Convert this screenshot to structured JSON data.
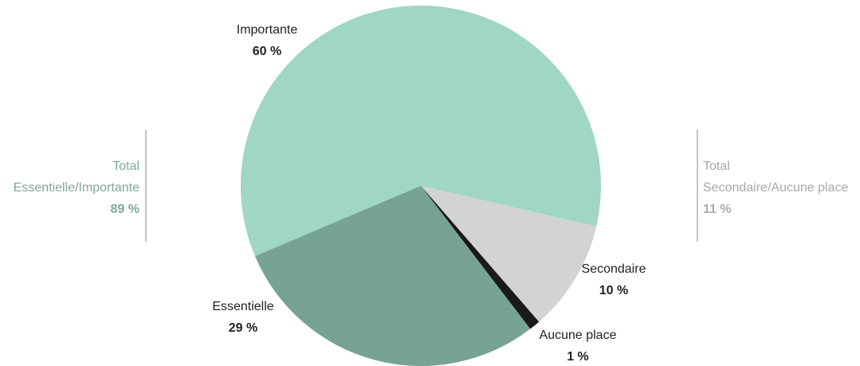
{
  "chart_data": {
    "type": "pie",
    "categories": [
      "Importante",
      "Secondaire",
      "Aucune place",
      "Essentielle"
    ],
    "values": [
      60,
      10,
      1,
      29
    ],
    "value_labels": [
      "60 %",
      "10 %",
      "1 %",
      "29 %"
    ],
    "colors": [
      "#9fd6c6",
      "#d2d3d5",
      "#1a1a1a",
      "#77a397"
    ],
    "start_angle": 247,
    "annotations": [
      {
        "lines": [
          "Total",
          "Essentielle/Importante"
        ],
        "label": "89 %",
        "color": "#7fa89b"
      },
      {
        "lines": [
          "Total",
          "Secondaire/Aucune place"
        ],
        "label": "11 %",
        "color": "#a9a9a9"
      }
    ]
  }
}
